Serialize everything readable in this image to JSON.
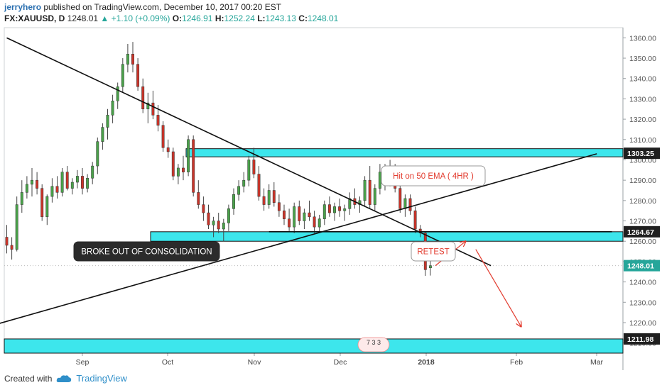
{
  "header": {
    "author": "jerryhero",
    "published_text": "published on TradingView.com, December 10, 2017 00:20 EST",
    "symbol": "FX:XAUUSD, D",
    "last": "1248.01",
    "change_arrow": "▲",
    "change": "+1.10 (+0.09%)",
    "open_label": "O:",
    "open": "1246.91",
    "high_label": "H:",
    "high": "1252.24",
    "low_label": "L:",
    "low": "1243.13",
    "close_label": "C:",
    "close": "1248.01"
  },
  "footer": {
    "created_with": "Created with",
    "brand": "TradingView",
    "logo_icon": "tradingview-cloud-icon"
  },
  "colors": {
    "up": "#4aa24a",
    "down": "#c9342a",
    "zone": "#3de6ec",
    "line": "#111111",
    "arrow": "#e23b2e",
    "price_tag": "#26a69a"
  },
  "chart_data": {
    "type": "candlestick",
    "x_tick_labels": [
      "Sep",
      "Oct",
      "Nov",
      "Dec",
      "2018",
      "Feb",
      "Mar"
    ],
    "y_tick_labels": [
      1210,
      1220,
      1230,
      1240,
      1250,
      1260,
      1270,
      1280,
      1290,
      1300,
      1310,
      1320,
      1330,
      1340,
      1350,
      1360
    ],
    "ylim": [
      1205,
      1365
    ],
    "price_labels": [
      {
        "value": 1303.25,
        "label": "1303.25",
        "style": "dark"
      },
      {
        "value": 1264.67,
        "label": "1264.67",
        "style": "dark"
      },
      {
        "value": 1248.01,
        "label": "1248.01",
        "style": "green"
      },
      {
        "value": 1211.98,
        "label": "1211.98",
        "style": "dark"
      }
    ],
    "candles": [
      {
        "o": 1262,
        "h": 1268,
        "l": 1254,
        "c": 1258
      },
      {
        "o": 1258,
        "h": 1262,
        "l": 1251,
        "c": 1256
      },
      {
        "o": 1256,
        "h": 1282,
        "l": 1255,
        "c": 1278
      },
      {
        "o": 1278,
        "h": 1290,
        "l": 1274,
        "c": 1284
      },
      {
        "o": 1284,
        "h": 1292,
        "l": 1281,
        "c": 1288
      },
      {
        "o": 1288,
        "h": 1296,
        "l": 1282,
        "c": 1290
      },
      {
        "o": 1290,
        "h": 1294,
        "l": 1283,
        "c": 1286
      },
      {
        "o": 1286,
        "h": 1288,
        "l": 1270,
        "c": 1272
      },
      {
        "o": 1272,
        "h": 1283,
        "l": 1268,
        "c": 1282
      },
      {
        "o": 1282,
        "h": 1291,
        "l": 1279,
        "c": 1287
      },
      {
        "o": 1287,
        "h": 1292,
        "l": 1281,
        "c": 1284
      },
      {
        "o": 1284,
        "h": 1296,
        "l": 1282,
        "c": 1294
      },
      {
        "o": 1294,
        "h": 1297,
        "l": 1285,
        "c": 1286
      },
      {
        "o": 1286,
        "h": 1291,
        "l": 1283,
        "c": 1289
      },
      {
        "o": 1289,
        "h": 1295,
        "l": 1286,
        "c": 1292
      },
      {
        "o": 1292,
        "h": 1296,
        "l": 1283,
        "c": 1286
      },
      {
        "o": 1286,
        "h": 1293,
        "l": 1284,
        "c": 1291
      },
      {
        "o": 1291,
        "h": 1299,
        "l": 1288,
        "c": 1297
      },
      {
        "o": 1297,
        "h": 1311,
        "l": 1293,
        "c": 1309
      },
      {
        "o": 1309,
        "h": 1318,
        "l": 1305,
        "c": 1316
      },
      {
        "o": 1316,
        "h": 1325,
        "l": 1310,
        "c": 1322
      },
      {
        "o": 1322,
        "h": 1332,
        "l": 1318,
        "c": 1329
      },
      {
        "o": 1329,
        "h": 1338,
        "l": 1325,
        "c": 1336
      },
      {
        "o": 1336,
        "h": 1350,
        "l": 1333,
        "c": 1347
      },
      {
        "o": 1347,
        "h": 1357,
        "l": 1343,
        "c": 1352
      },
      {
        "o": 1352,
        "h": 1358,
        "l": 1343,
        "c": 1347
      },
      {
        "o": 1347,
        "h": 1350,
        "l": 1334,
        "c": 1336
      },
      {
        "o": 1336,
        "h": 1340,
        "l": 1323,
        "c": 1325
      },
      {
        "o": 1325,
        "h": 1333,
        "l": 1318,
        "c": 1328
      },
      {
        "o": 1328,
        "h": 1334,
        "l": 1320,
        "c": 1322
      },
      {
        "o": 1322,
        "h": 1327,
        "l": 1314,
        "c": 1317
      },
      {
        "o": 1317,
        "h": 1319,
        "l": 1304,
        "c": 1306
      },
      {
        "o": 1306,
        "h": 1310,
        "l": 1301,
        "c": 1304
      },
      {
        "o": 1304,
        "h": 1306,
        "l": 1290,
        "c": 1292
      },
      {
        "o": 1292,
        "h": 1298,
        "l": 1288,
        "c": 1296
      },
      {
        "o": 1296,
        "h": 1302,
        "l": 1290,
        "c": 1294
      },
      {
        "o": 1294,
        "h": 1312,
        "l": 1292,
        "c": 1310
      },
      {
        "o": 1310,
        "h": 1312,
        "l": 1282,
        "c": 1284
      },
      {
        "o": 1284,
        "h": 1290,
        "l": 1276,
        "c": 1278
      },
      {
        "o": 1278,
        "h": 1282,
        "l": 1270,
        "c": 1274
      },
      {
        "o": 1274,
        "h": 1278,
        "l": 1266,
        "c": 1268
      },
      {
        "o": 1268,
        "h": 1272,
        "l": 1262,
        "c": 1270
      },
      {
        "o": 1270,
        "h": 1274,
        "l": 1264,
        "c": 1266
      },
      {
        "o": 1266,
        "h": 1271,
        "l": 1260,
        "c": 1269
      },
      {
        "o": 1269,
        "h": 1278,
        "l": 1265,
        "c": 1276
      },
      {
        "o": 1276,
        "h": 1286,
        "l": 1273,
        "c": 1283
      },
      {
        "o": 1283,
        "h": 1290,
        "l": 1280,
        "c": 1287
      },
      {
        "o": 1287,
        "h": 1294,
        "l": 1284,
        "c": 1290
      },
      {
        "o": 1290,
        "h": 1302,
        "l": 1287,
        "c": 1300
      },
      {
        "o": 1300,
        "h": 1306,
        "l": 1291,
        "c": 1293
      },
      {
        "o": 1293,
        "h": 1297,
        "l": 1280,
        "c": 1282
      },
      {
        "o": 1282,
        "h": 1286,
        "l": 1275,
        "c": 1278
      },
      {
        "o": 1278,
        "h": 1288,
        "l": 1276,
        "c": 1285
      },
      {
        "o": 1285,
        "h": 1289,
        "l": 1277,
        "c": 1279
      },
      {
        "o": 1279,
        "h": 1283,
        "l": 1272,
        "c": 1275
      },
      {
        "o": 1275,
        "h": 1278,
        "l": 1268,
        "c": 1271
      },
      {
        "o": 1271,
        "h": 1276,
        "l": 1265,
        "c": 1267
      },
      {
        "o": 1267,
        "h": 1279,
        "l": 1264,
        "c": 1277
      },
      {
        "o": 1277,
        "h": 1280,
        "l": 1268,
        "c": 1270
      },
      {
        "o": 1270,
        "h": 1276,
        "l": 1266,
        "c": 1274
      },
      {
        "o": 1274,
        "h": 1280,
        "l": 1270,
        "c": 1272
      },
      {
        "o": 1272,
        "h": 1275,
        "l": 1264,
        "c": 1267
      },
      {
        "o": 1267,
        "h": 1273,
        "l": 1264,
        "c": 1271
      },
      {
        "o": 1271,
        "h": 1280,
        "l": 1268,
        "c": 1278
      },
      {
        "o": 1278,
        "h": 1282,
        "l": 1272,
        "c": 1274
      },
      {
        "o": 1274,
        "h": 1279,
        "l": 1270,
        "c": 1277
      },
      {
        "o": 1277,
        "h": 1281,
        "l": 1272,
        "c": 1275
      },
      {
        "o": 1275,
        "h": 1278,
        "l": 1270,
        "c": 1276
      },
      {
        "o": 1276,
        "h": 1284,
        "l": 1273,
        "c": 1281
      },
      {
        "o": 1281,
        "h": 1286,
        "l": 1276,
        "c": 1278
      },
      {
        "o": 1278,
        "h": 1282,
        "l": 1274,
        "c": 1280
      },
      {
        "o": 1280,
        "h": 1292,
        "l": 1277,
        "c": 1290
      },
      {
        "o": 1290,
        "h": 1297,
        "l": 1276,
        "c": 1278
      },
      {
        "o": 1278,
        "h": 1288,
        "l": 1275,
        "c": 1286
      },
      {
        "o": 1286,
        "h": 1298,
        "l": 1283,
        "c": 1294
      },
      {
        "o": 1294,
        "h": 1298,
        "l": 1285,
        "c": 1290
      },
      {
        "o": 1290,
        "h": 1300,
        "l": 1287,
        "c": 1296
      },
      {
        "o": 1296,
        "h": 1298,
        "l": 1284,
        "c": 1286
      },
      {
        "o": 1286,
        "h": 1290,
        "l": 1274,
        "c": 1276
      },
      {
        "o": 1276,
        "h": 1283,
        "l": 1272,
        "c": 1281
      },
      {
        "o": 1281,
        "h": 1283,
        "l": 1273,
        "c": 1275
      },
      {
        "o": 1275,
        "h": 1277,
        "l": 1264,
        "c": 1266
      },
      {
        "o": 1266,
        "h": 1268,
        "l": 1262,
        "c": 1264
      },
      {
        "o": 1264,
        "h": 1265,
        "l": 1243,
        "c": 1246
      },
      {
        "o": 1246.91,
        "h": 1252.24,
        "l": 1243.13,
        "c": 1248.01
      }
    ],
    "annotations": [
      {
        "label": "BROKE OUT OF CONSOLIDATION",
        "style": "dark"
      },
      {
        "label": "Hit on 50 EMA ( 4HR )",
        "style": "light-red"
      },
      {
        "label": "RETEST",
        "style": "light-red"
      }
    ],
    "zones": [
      {
        "from": 1301.5,
        "to": 1305.5
      },
      {
        "from": 1260.0,
        "to": 1264.67
      },
      {
        "from": 1205.0,
        "to": 1211.98
      }
    ],
    "lines": [
      {
        "name": "descending-trendline",
        "from": [
          0,
          1360
        ],
        "to": [
          96,
          1248
        ]
      },
      {
        "name": "ascending-trendline",
        "from": [
          -8,
          1215
        ],
        "to": [
          117,
          1303
        ]
      },
      {
        "name": "horizontal-1264",
        "from": [
          52,
          1264.67
        ],
        "to": [
          120,
          1264.67
        ]
      }
    ],
    "arrows": [
      {
        "name": "up-arrow",
        "from": [
          85,
          1248
        ],
        "to": [
          91,
          1260
        ]
      },
      {
        "name": "down-arrow",
        "from": [
          93,
          1256
        ],
        "to": [
          102,
          1218
        ]
      }
    ],
    "events_badge": "7 3 3",
    "last_price_line": 1248.01
  }
}
